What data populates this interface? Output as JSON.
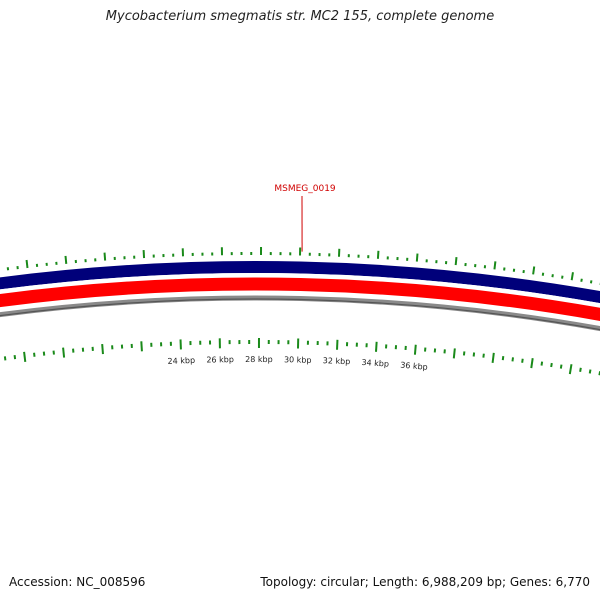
{
  "title": "Mycobacterium smegmatis str. MC2 155, complete genome",
  "footer": {
    "accession": "Accession: NC_008596",
    "summary": "Topology: circular; Length: 6,988,209 bp; Genes: 6,770"
  },
  "colors": {
    "plus_strand": "#00007a",
    "minus_strand": "#ff0000",
    "backbone": "#8a8a8a",
    "ticks": "#1a8a1a",
    "highlight": "#d00000"
  },
  "axis_labels": [
    "24 kbp",
    "26 kbp",
    "28 kbp",
    "30 kbp",
    "32 kbp",
    "34 kbp",
    "36 kbp"
  ],
  "highlighted_gene": {
    "label": "MSMEG_0019"
  }
}
